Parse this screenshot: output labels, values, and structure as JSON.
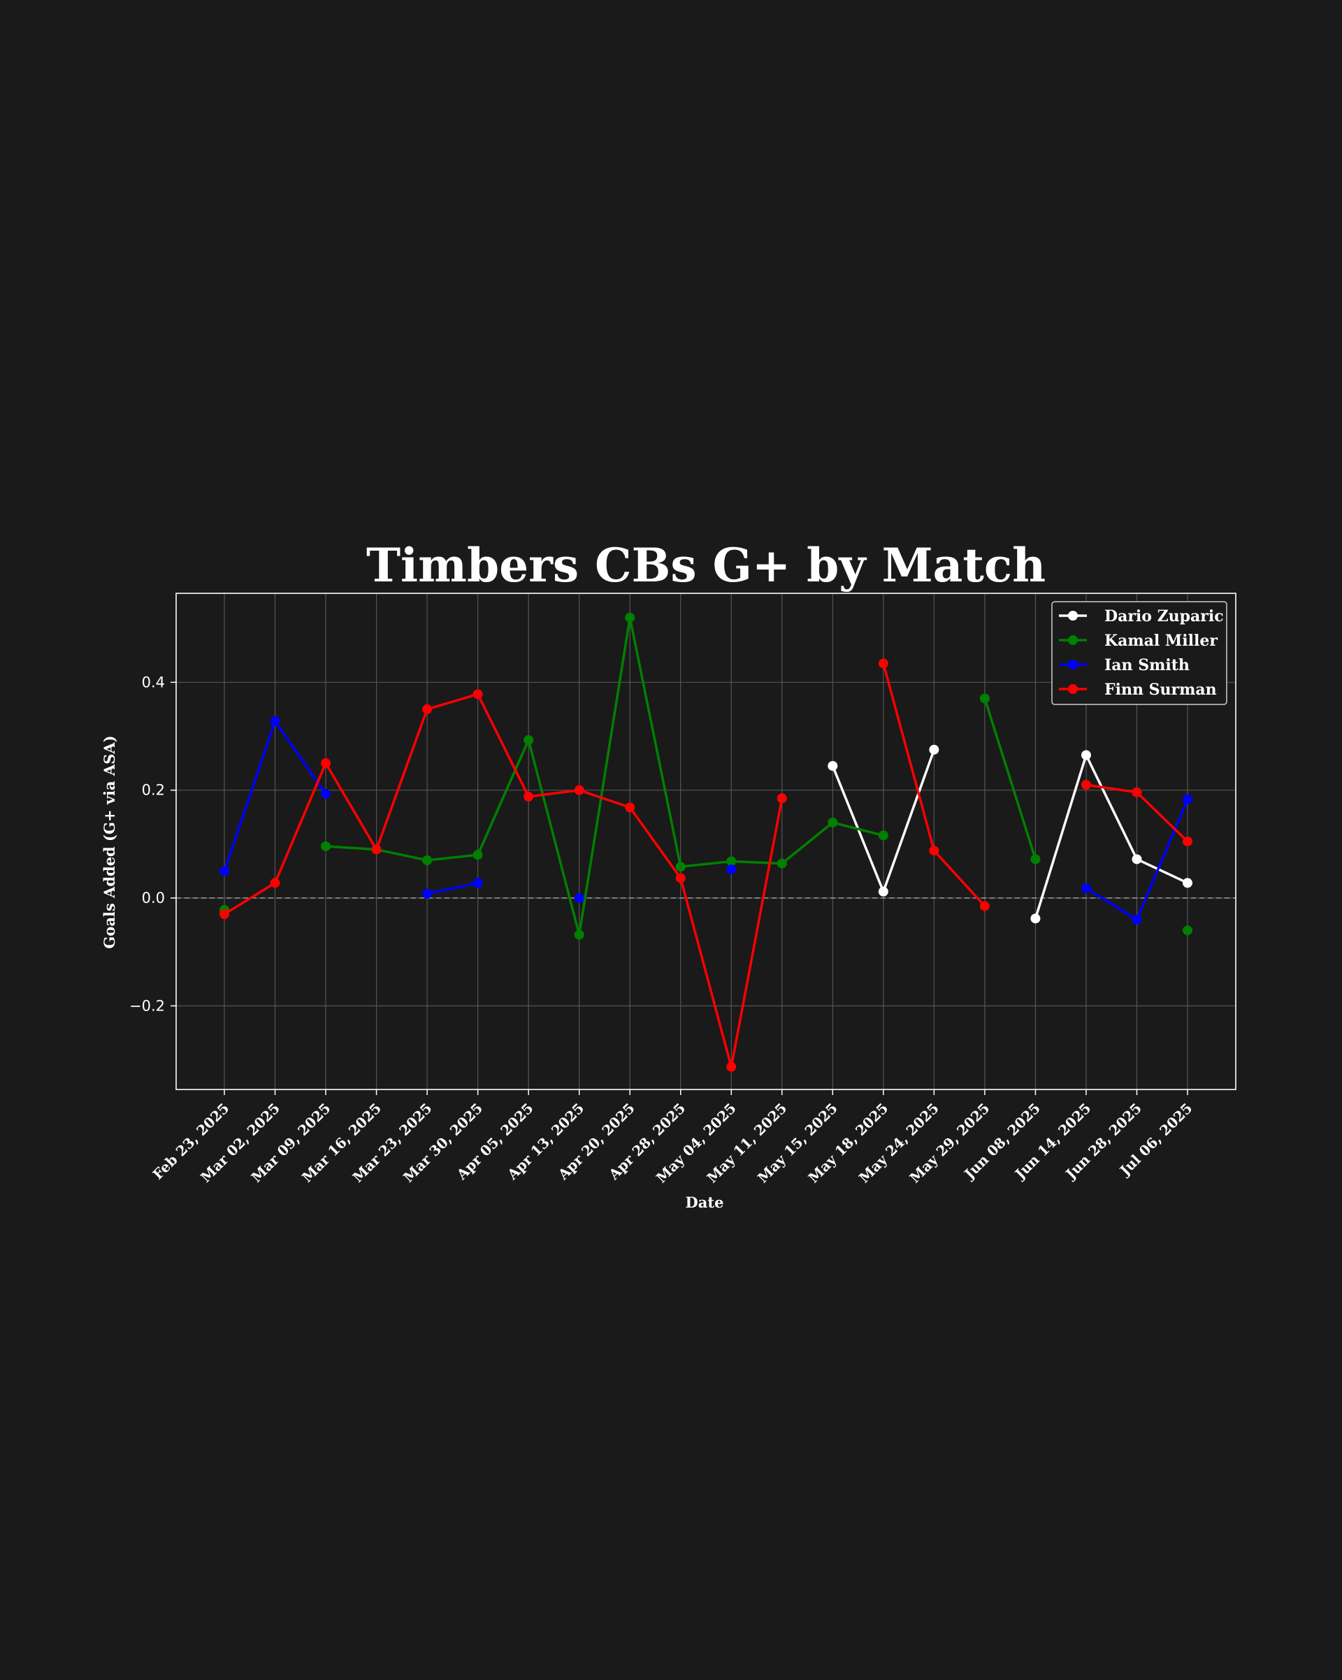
{
  "chart_data": {
    "type": "line",
    "title": "Timbers CBs G+ by Match",
    "xlabel": "Date",
    "ylabel": "Goals Added (G+ via ASA)",
    "x": [
      "Feb 23, 2025",
      "Mar 02, 2025",
      "Mar 09, 2025",
      "Mar 16, 2025",
      "Mar 23, 2025",
      "Mar 30, 2025",
      "Apr 05, 2025",
      "Apr 13, 2025",
      "Apr 20, 2025",
      "Apr 28, 2025",
      "May 04, 2025",
      "May 11, 2025",
      "May 15, 2025",
      "May 18, 2025",
      "May 24, 2025",
      "May 29, 2025",
      "Jun 08, 2025",
      "Jun 14, 2025",
      "Jun 28, 2025",
      "Jul 06, 2025"
    ],
    "yticks": [
      -0.2,
      0.0,
      0.2,
      0.4
    ],
    "ytick_labels": [
      "−0.2",
      "0.0",
      "0.2",
      "0.4"
    ],
    "ylim": [
      -0.355,
      0.565
    ],
    "grid": true,
    "zero_line": true,
    "legend_position": "top-right",
    "background_color": "#1a1a1a",
    "series": [
      {
        "name": "Dario Zuparic",
        "color": "#ffffff",
        "values": [
          null,
          null,
          null,
          null,
          null,
          null,
          null,
          null,
          null,
          null,
          null,
          null,
          0.245,
          0.012,
          0.275,
          null,
          -0.038,
          0.265,
          0.072,
          0.028
        ]
      },
      {
        "name": "Kamal Miller",
        "color": "#008000",
        "values": [
          -0.022,
          null,
          0.096,
          0.09,
          0.07,
          0.08,
          0.293,
          -0.068,
          0.52,
          0.058,
          0.068,
          0.064,
          0.14,
          0.116,
          null,
          0.37,
          0.072,
          null,
          null,
          -0.06
        ]
      },
      {
        "name": "Ian Smith",
        "color": "#0000ff",
        "values": [
          0.05,
          0.328,
          0.193,
          null,
          0.008,
          0.028,
          null,
          0.0,
          null,
          null,
          0.053,
          null,
          null,
          null,
          null,
          null,
          null,
          0.018,
          -0.04,
          0.183
        ]
      },
      {
        "name": "Finn Surman",
        "color": "#ff0000",
        "values": [
          -0.03,
          0.028,
          0.25,
          0.09,
          0.35,
          0.378,
          0.188,
          0.2,
          0.168,
          0.037,
          -0.313,
          0.185,
          null,
          0.435,
          0.088,
          -0.015,
          null,
          0.21,
          0.196,
          0.105
        ]
      }
    ]
  }
}
